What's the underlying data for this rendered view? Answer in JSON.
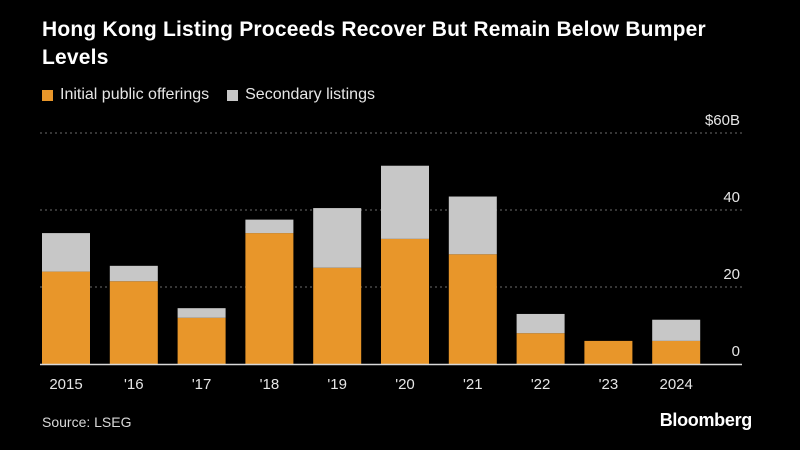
{
  "title": "Hong Kong Listing Proceeds Recover But Remain Below Bumper Levels",
  "source": "Source: LSEG",
  "brand": "Bloomberg",
  "colors": {
    "ipo": "#e8962a",
    "secondary": "#c7c7c7",
    "background": "#000000",
    "grid": "#6b6b6b",
    "text": "#ffffff"
  },
  "legend": {
    "ipo_label": "Initial public offerings",
    "secondary_label": "Secondary listings"
  },
  "chart_data": {
    "type": "bar",
    "stacked": true,
    "title": "Hong Kong Listing Proceeds Recover But Remain Below Bumper Levels",
    "xlabel": "",
    "ylabel": "",
    "categories": [
      "2015",
      "'16",
      "'17",
      "'18",
      "'19",
      "'20",
      "'21",
      "'22",
      "'23",
      "2024"
    ],
    "series": [
      {
        "name": "Initial public offerings",
        "values": [
          24,
          21.5,
          12,
          34,
          25,
          32.5,
          28.5,
          8,
          6,
          6
        ]
      },
      {
        "name": "Secondary listings",
        "values": [
          10,
          4,
          2.5,
          3.5,
          15.5,
          19,
          15,
          5,
          0,
          5.5
        ]
      }
    ],
    "ylim": [
      0,
      60
    ],
    "yticks": [
      {
        "value": 0,
        "label": "0"
      },
      {
        "value": 20,
        "label": "20"
      },
      {
        "value": 40,
        "label": "40"
      },
      {
        "value": 60,
        "label": "$60B"
      }
    ],
    "grid": true,
    "legend_position": "top-left"
  }
}
